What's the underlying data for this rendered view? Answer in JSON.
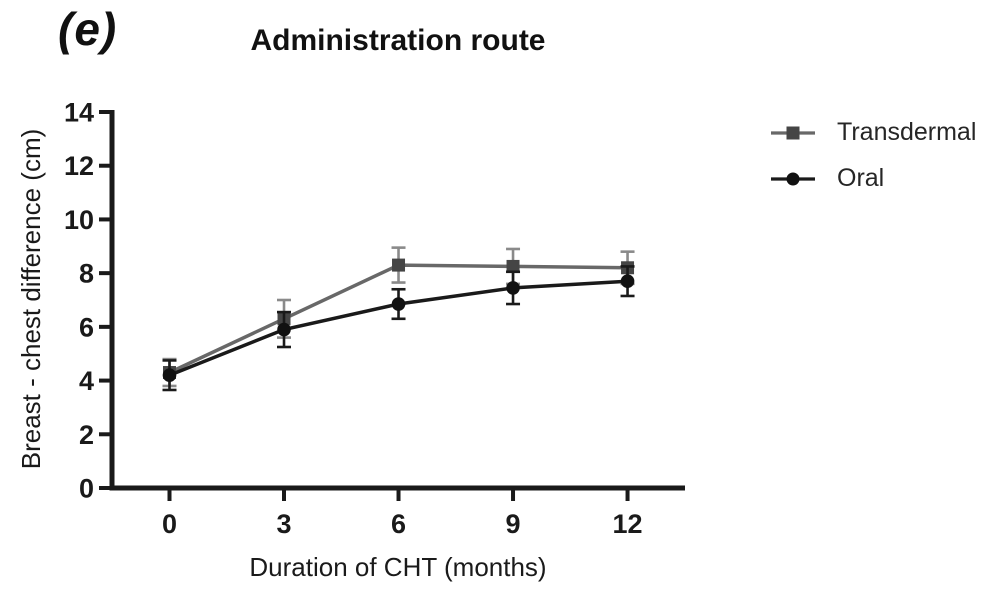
{
  "figure": {
    "panel_label": "(e)",
    "title": "Administration route"
  },
  "chart_data": {
    "type": "line",
    "title": "Administration route",
    "xlabel": "Duration of CHT (months)",
    "ylabel": "Breast - chest difference (cm)",
    "x": [
      0,
      3,
      6,
      9,
      12
    ],
    "xticks": [
      "0",
      "3",
      "6",
      "9",
      "12"
    ],
    "yticks": [
      0,
      2,
      4,
      6,
      8,
      10,
      12,
      14
    ],
    "ylim": [
      0,
      14
    ],
    "xlim": [
      -1.5,
      13.5
    ],
    "grid": false,
    "error_bars": true,
    "legend_position": "right",
    "axis_color": "#1a1a1a",
    "series": [
      {
        "name": "Transdermal",
        "marker": "square",
        "line_color": "#686868",
        "marker_color": "#454545",
        "error_color": "#8a8a8a",
        "values": [
          4.3,
          6.3,
          8.3,
          8.25,
          8.2
        ],
        "errors": [
          0.5,
          0.7,
          0.65,
          0.65,
          0.6
        ]
      },
      {
        "name": "Oral",
        "marker": "circle",
        "line_color": "#1a1a1a",
        "marker_color": "#111111",
        "error_color": "#1a1a1a",
        "values": [
          4.2,
          5.9,
          6.85,
          7.45,
          7.7
        ],
        "errors": [
          0.55,
          0.65,
          0.55,
          0.6,
          0.55
        ]
      }
    ]
  }
}
